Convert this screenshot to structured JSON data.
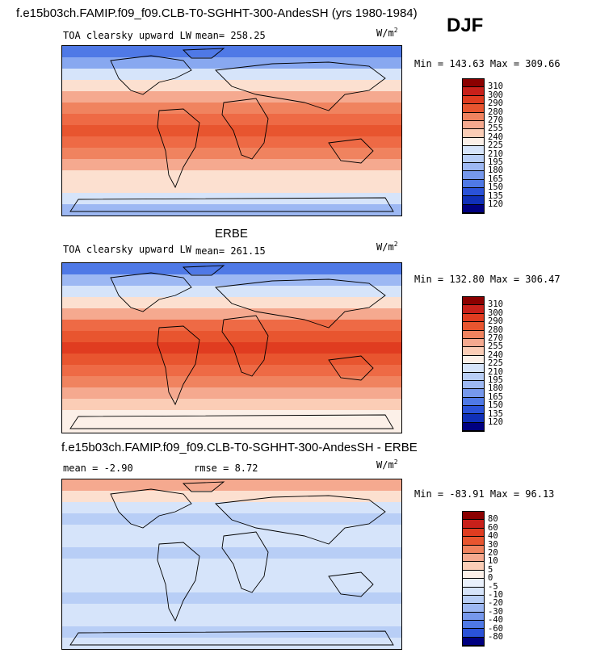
{
  "header": {
    "title": "f.e15b03ch.FAMIP.f09_f09.CLB-T0-SGHHT-300-AndesSH (yrs 1980-1984)",
    "season": "DJF"
  },
  "panels": [
    {
      "id": "model",
      "section_title": "",
      "variable": "TOA clearsky upward LW",
      "mean_text": "mean= 258.25",
      "rmse_text": "",
      "units": "W/m",
      "units_exp": "2",
      "minmax": "Min = 143.63 Max = 309.66",
      "map_rows": [
        "#4F79E6",
        "#88A8F0",
        "#D6E4FA",
        "#FCE0D0",
        "#F5A98F",
        "#F0835F",
        "#EE6A45",
        "#E8552F",
        "#EE6A45",
        "#F0835F",
        "#F5A98F",
        "#FCE0D0",
        "#FCE0D0",
        "#D6E4FA",
        "#9DB8F3"
      ],
      "levels": [
        "310",
        "300",
        "290",
        "280",
        "270",
        "255",
        "240",
        "225",
        "210",
        "195",
        "180",
        "165",
        "150",
        "135",
        "120"
      ],
      "colors": [
        "#8B0000",
        "#C8201A",
        "#E03C20",
        "#E8552F",
        "#F0835F",
        "#F5A98F",
        "#FBCDB6",
        "#FCF0E8",
        "#D6E4FA",
        "#B8CEF6",
        "#9DB8F3",
        "#7698EC",
        "#4F79E6",
        "#2A52D8",
        "#1030B8",
        "#000080"
      ]
    },
    {
      "id": "obs",
      "section_title": "ERBE",
      "variable": "TOA clearsky upward LW",
      "mean_text": "mean= 261.15",
      "rmse_text": "",
      "units": "W/m",
      "units_exp": "2",
      "minmax": "Min = 132.80 Max = 306.47",
      "map_rows": [
        "#4F79E6",
        "#9DB8F3",
        "#D6E4FA",
        "#FCE0D0",
        "#F5A98F",
        "#EE6A45",
        "#E8552F",
        "#E03C20",
        "#E8552F",
        "#EE6A45",
        "#F0835F",
        "#F5A98F",
        "#FBCDB6",
        "#FCF0E8",
        "#FCF0E8"
      ],
      "levels": [
        "310",
        "300",
        "290",
        "280",
        "270",
        "255",
        "240",
        "225",
        "210",
        "195",
        "180",
        "165",
        "150",
        "135",
        "120"
      ],
      "colors": [
        "#8B0000",
        "#C8201A",
        "#E03C20",
        "#E8552F",
        "#F0835F",
        "#F5A98F",
        "#FBCDB6",
        "#FCF0E8",
        "#D6E4FA",
        "#B8CEF6",
        "#9DB8F3",
        "#7698EC",
        "#4F79E6",
        "#2A52D8",
        "#1030B8",
        "#000080"
      ]
    },
    {
      "id": "diff",
      "section_title": "f.e15b03ch.FAMIP.f09_f09.CLB-T0-SGHHT-300-AndesSH - ERBE",
      "variable": "",
      "mean_text": "mean =   -2.90",
      "rmse_text": "rmse =   8.72",
      "units": "W/m",
      "units_exp": "2",
      "minmax": "Min = -83.91 Max =  96.13",
      "map_rows": [
        "#F5A98F",
        "#FCE0D0",
        "#D6E4FA",
        "#B8CEF6",
        "#D6E4FA",
        "#D6E4FA",
        "#B8CEF6",
        "#D6E4FA",
        "#D6E4FA",
        "#D6E4FA",
        "#B8CEF6",
        "#D6E4FA",
        "#D6E4FA",
        "#B8CEF6",
        "#D6E4FA"
      ],
      "levels": [
        "80",
        "60",
        "40",
        "30",
        "20",
        "10",
        "5",
        "0",
        "-5",
        "-10",
        "-20",
        "-30",
        "-40",
        "-60",
        "-80"
      ],
      "colors": [
        "#8B0000",
        "#C8201A",
        "#E03C20",
        "#E8552F",
        "#F0835F",
        "#F5A98F",
        "#FBCDB6",
        "#FCF0E8",
        "#EAF1FC",
        "#D6E4FA",
        "#B8CEF6",
        "#9DB8F3",
        "#7698EC",
        "#4F79E6",
        "#2A52D8",
        "#000080"
      ]
    }
  ]
}
